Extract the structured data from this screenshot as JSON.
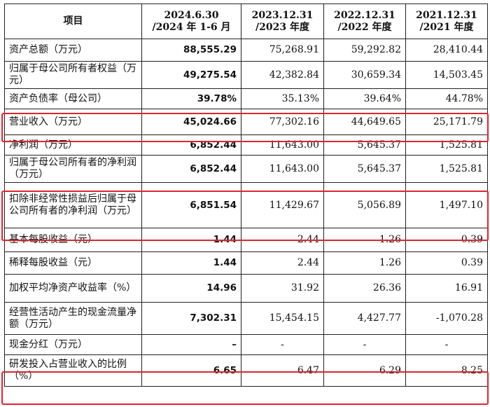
{
  "table": {
    "headers": [
      {
        "line1": "项目",
        "line2": ""
      },
      {
        "line1": "2024.6.30",
        "line2": "/2024 年 1-6 月"
      },
      {
        "line1": "2023.12.31",
        "line2": "/2023 年度"
      },
      {
        "line1": "2022.12.31",
        "line2": "/2022 年度"
      },
      {
        "line1": "2021.12.31",
        "line2": "/2021 年度"
      }
    ],
    "rows": [
      {
        "label": "资产总额（万元）",
        "values": [
          "88,555.29",
          "75,268.91",
          "59,292.82",
          "28,410.44"
        ]
      },
      {
        "label": "归属于母公司所有者权益（万元）",
        "values": [
          "49,275.54",
          "42,382.84",
          "30,659.34",
          "14,503.45"
        ]
      },
      {
        "label": "资产负债率（母公司）",
        "values": [
          "39.78%",
          "35.13%",
          "39.64%",
          "44.78%"
        ]
      },
      {
        "label": "营业收入（万元）",
        "values": [
          "45,024.66",
          "77,302.16",
          "44,649.65",
          "25,171.79"
        ]
      },
      {
        "label": "净利润（万元）",
        "values": [
          "6,852.44",
          "11,643.00",
          "5,645.37",
          "1,525.81"
        ]
      },
      {
        "label": "归属于母公司所有者的净利润（万元）",
        "values": [
          "6,852.44",
          "11,643.00",
          "5,645.37",
          "1,525.81"
        ]
      },
      {
        "label": "扣除非经常性损益后归属于母公司所有者的净利润（万元）",
        "values": [
          "6,851.54",
          "11,429.67",
          "5,056.89",
          "1,497.10"
        ]
      },
      {
        "label": "基本每股收益（元）",
        "values": [
          "1.44",
          "2.44",
          "1.26",
          "0.39"
        ]
      },
      {
        "label": "稀释每股收益（元）",
        "values": [
          "1.44",
          "2.44",
          "1.26",
          "0.39"
        ]
      },
      {
        "label": "加权平均净资产收益率（%）",
        "values": [
          "14.96",
          "31.92",
          "26.36",
          "16.91"
        ]
      },
      {
        "label": "经营性活动产生的现金流量净额（万元）",
        "values": [
          "7,302.31",
          "15,454.15",
          "4,427.77",
          "-1,070.28"
        ]
      },
      {
        "label": "现金分红（万元）",
        "values": [
          "–",
          "-",
          "-",
          "-"
        ]
      },
      {
        "label": "研发投入占营业收入的比例（%）",
        "values": [
          "6.65",
          "6.47",
          "6.29",
          "8.25"
        ]
      }
    ]
  },
  "highlight_color": "#e0242c"
}
